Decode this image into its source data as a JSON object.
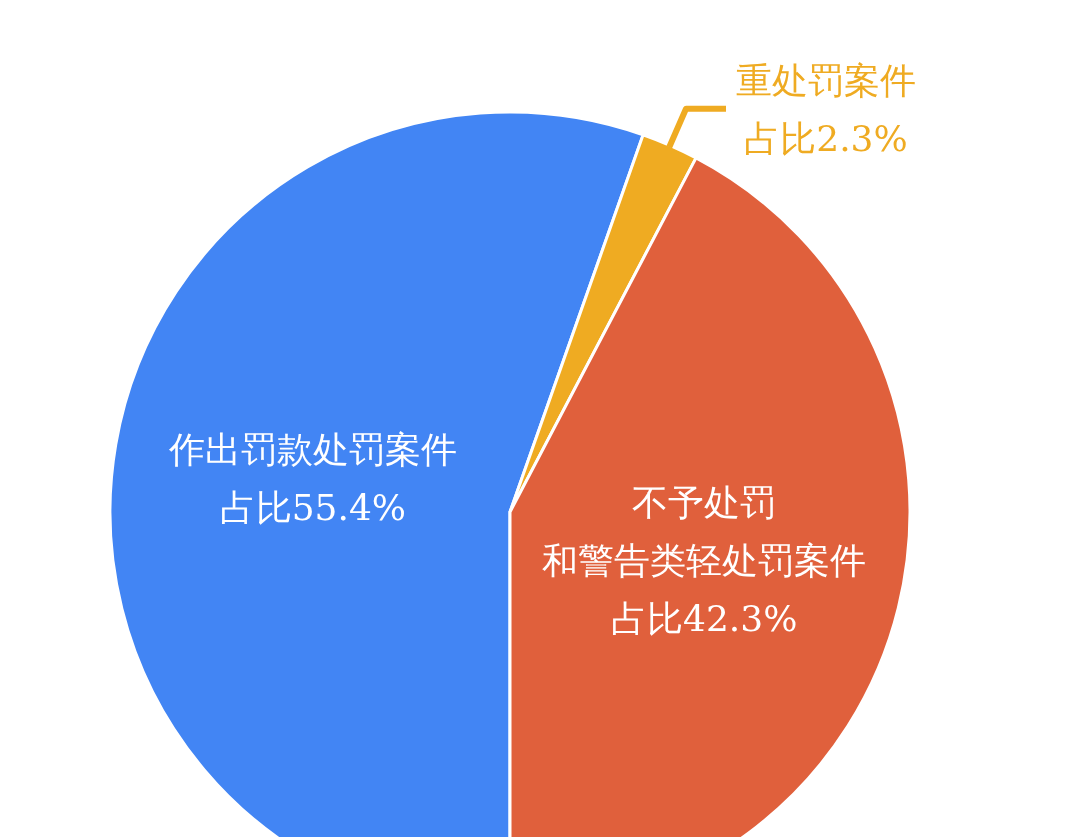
{
  "chart_data": {
    "type": "pie",
    "categories": [
      "作出罚款处罚案件",
      "重处罚案件",
      "不予处罚和警告类轻处罚案件"
    ],
    "values": [
      55.4,
      2.3,
      42.3
    ],
    "colors": [
      "#4285f4",
      "#efab22",
      "#e0603c"
    ],
    "value_labels": [
      "占比55.4%",
      "占比2.3%",
      "占比42.3%"
    ]
  }
}
